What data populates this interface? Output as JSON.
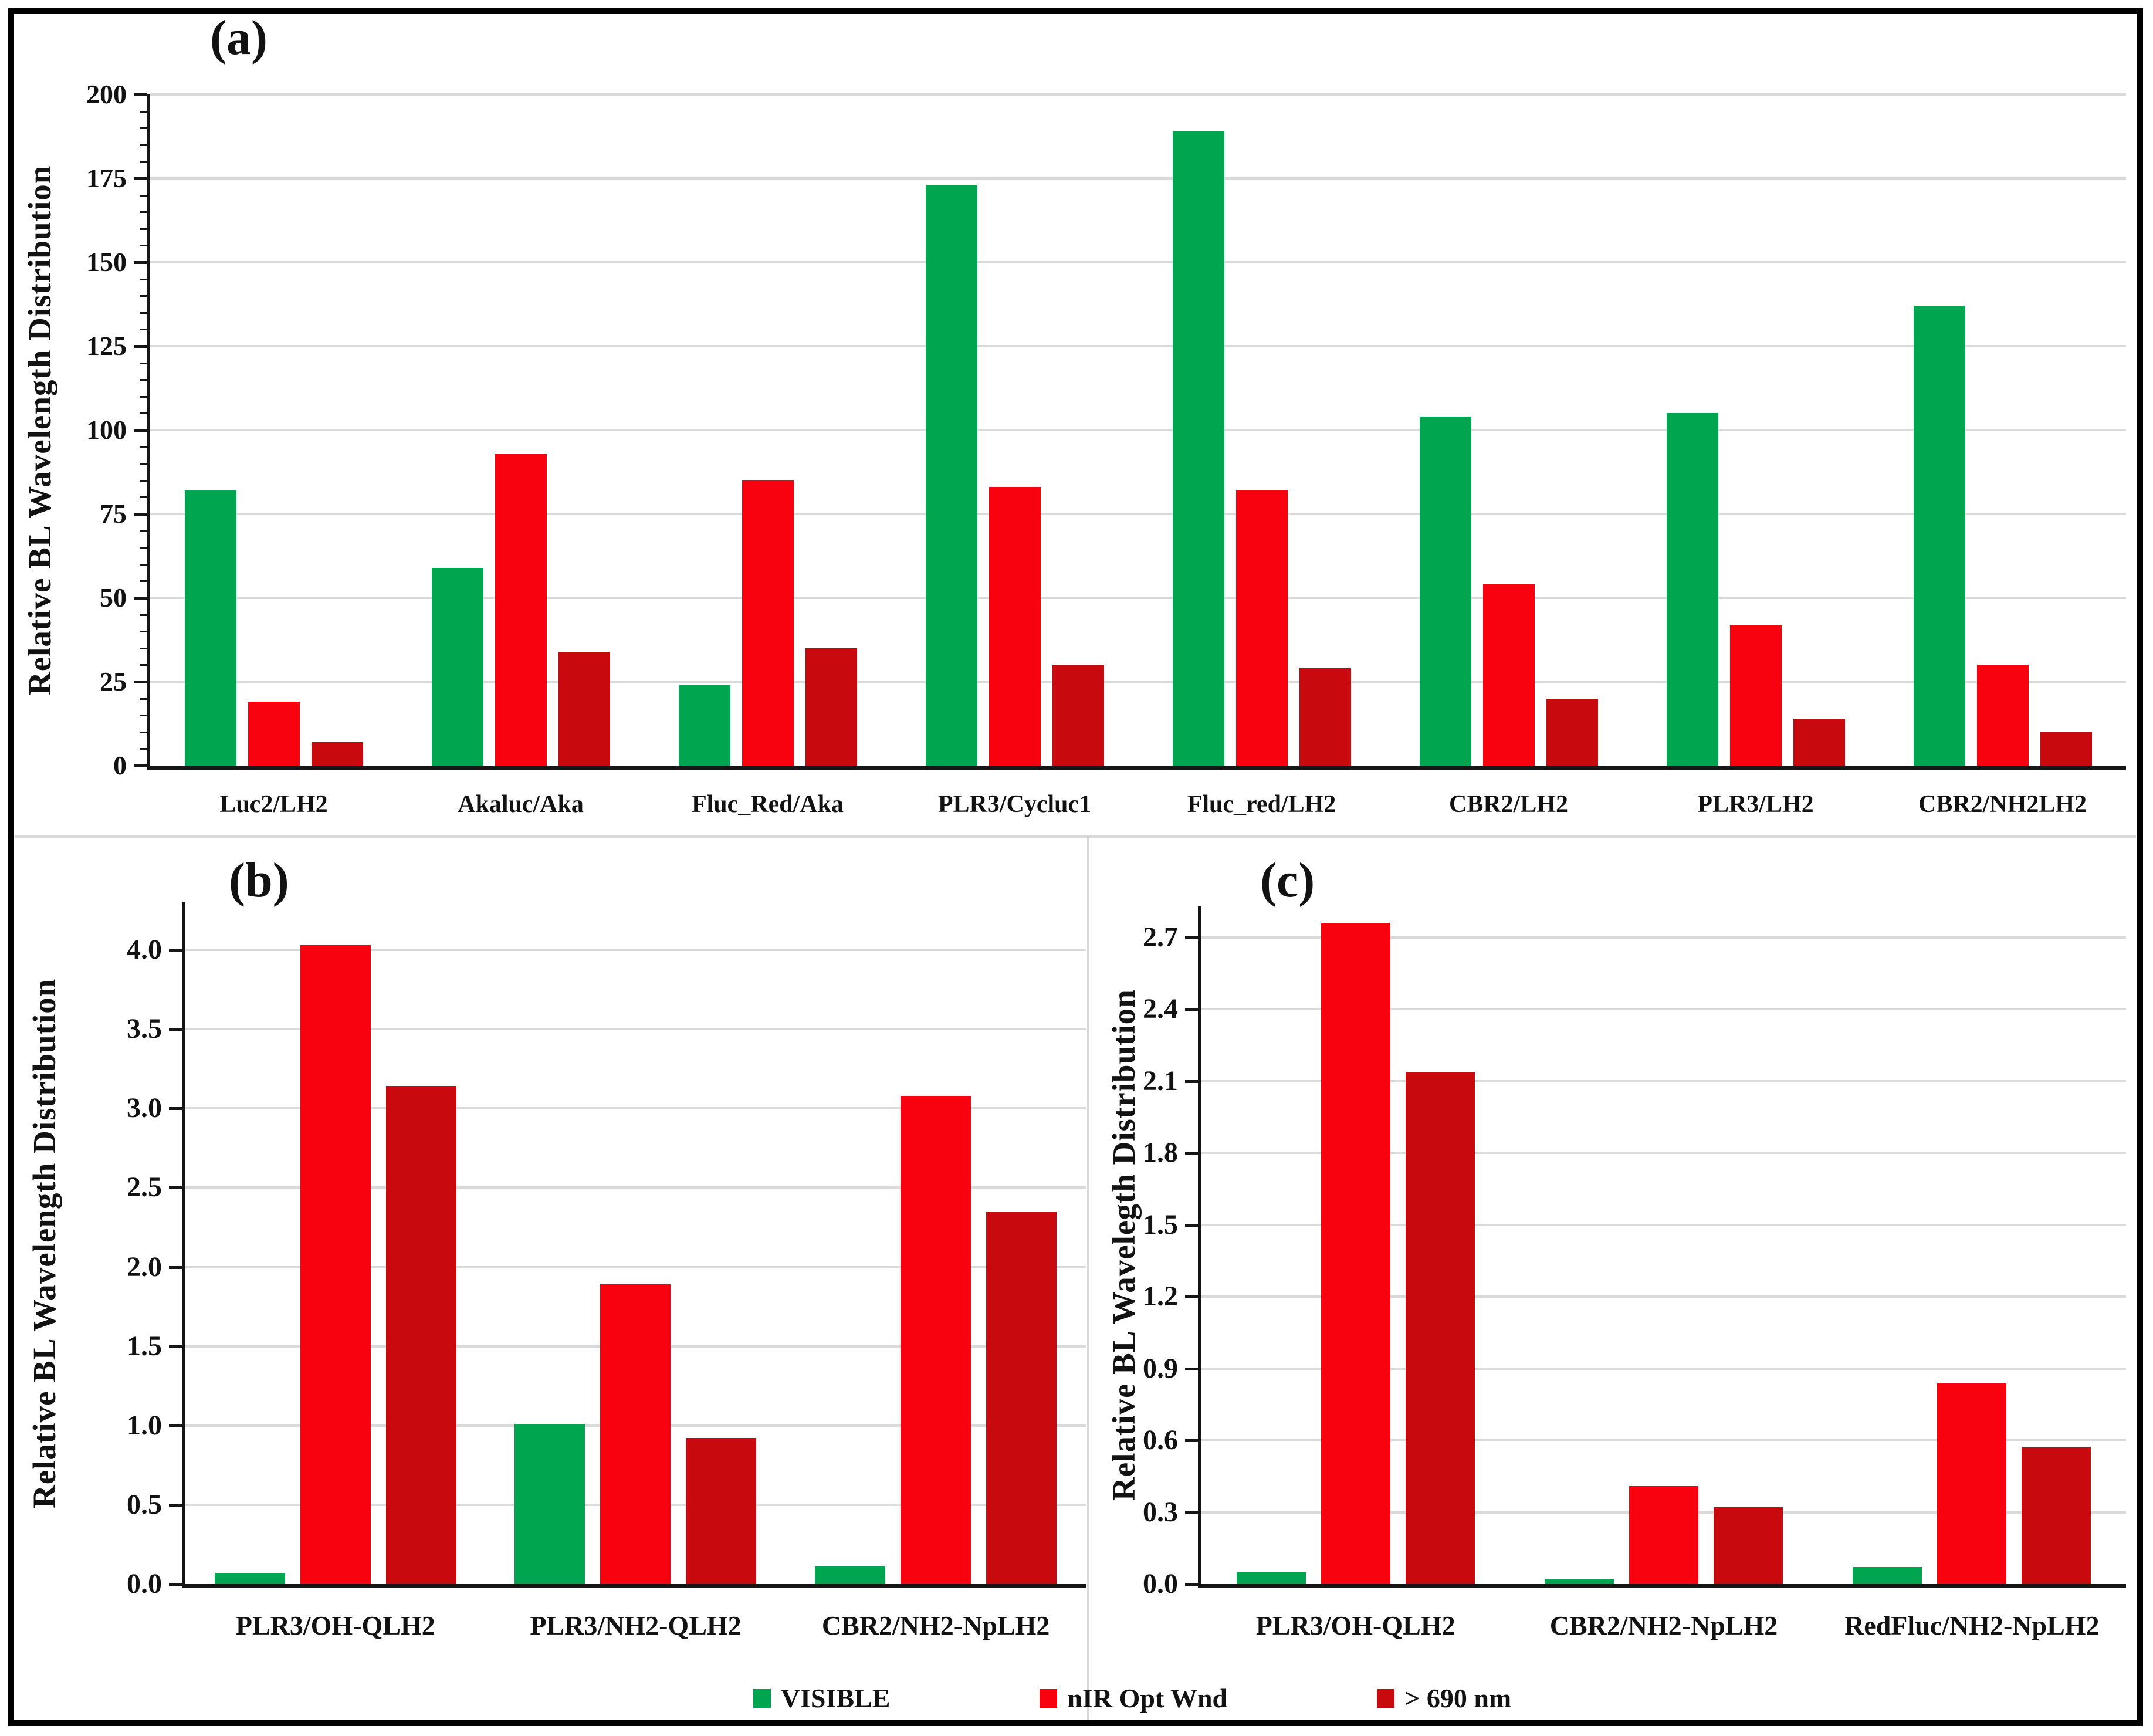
{
  "figure": {
    "background": "#FFFFFF",
    "border_color": "#000000"
  },
  "colors": {
    "visible": "#00A64F",
    "nir": "#F90210",
    "gt690": "#C8090E",
    "gridline": "#DADADA",
    "axis": "#161616",
    "divider": "#D9D9D9",
    "text": "#121212"
  },
  "legend": {
    "items": [
      {
        "label": "VISIBLE",
        "color": "visible"
      },
      {
        "label": "nIR Opt Wnd",
        "color": "nir"
      },
      {
        "label": "> 690 nm",
        "color": "gt690"
      }
    ]
  },
  "chart_data": [
    {
      "id": "a",
      "type": "bar",
      "tag": "(a)",
      "ylabel": "Relative BL Wavelength Distribution",
      "categories": [
        "Luc2/LH2",
        "Akaluc/Aka",
        "Fluc_Red/Aka",
        "PLR3/Cycluc1",
        "Fluc_red/LH2",
        "CBR2/LH2",
        "PLR3/LH2",
        "CBR2/NH2LH2"
      ],
      "series": [
        {
          "name": "VISIBLE",
          "values": [
            82,
            59,
            24,
            173,
            189,
            104,
            105,
            137
          ]
        },
        {
          "name": "nIR Opt Wnd",
          "values": [
            19,
            93,
            85,
            83,
            82,
            54,
            42,
            30
          ]
        },
        {
          "name": "> 690 nm",
          "values": [
            7,
            34,
            35,
            30,
            29,
            20,
            14,
            10
          ]
        }
      ],
      "yticks": [
        "0",
        "25",
        "50",
        "75",
        "100",
        "125",
        "150",
        "175",
        "200"
      ],
      "ylim": [
        0,
        200
      ],
      "ymax_plot": 200,
      "major_tick_step": 25,
      "minor_tick_step": 5,
      "grid": true,
      "legend_position": "bottom"
    },
    {
      "id": "b",
      "type": "bar",
      "tag": "(b)",
      "ylabel": "Relative BL Wavelength Distribution",
      "categories": [
        "PLR3/OH-QLH2",
        "PLR3/NH2-QLH2",
        "CBR2/NH2-NpLH2"
      ],
      "series": [
        {
          "name": "VISIBLE",
          "values": [
            0.07,
            1.01,
            0.11
          ]
        },
        {
          "name": "nIR Opt Wnd",
          "values": [
            4.03,
            1.89,
            3.08
          ]
        },
        {
          "name": "> 690 nm",
          "values": [
            3.14,
            0.92,
            2.35
          ]
        }
      ],
      "yticks": [
        "0.0",
        "0.5",
        "1.0",
        "1.5",
        "2.0",
        "2.5",
        "3.0",
        "3.5",
        "4.0"
      ],
      "ylim": [
        0,
        4.3
      ],
      "ymax_plot": 4.3,
      "grid": true,
      "legend_position": "bottom"
    },
    {
      "id": "c",
      "type": "bar",
      "tag": "(c)",
      "ylabel": "Relative BL Wavelegth Distribution",
      "categories": [
        "PLR3/OH-QLH2",
        "CBR2/NH2-NpLH2",
        "RedFluc/NH2-NpLH2"
      ],
      "series": [
        {
          "name": "VISIBLE",
          "values": [
            0.05,
            0.02,
            0.07
          ]
        },
        {
          "name": "nIR Opt Wnd",
          "values": [
            2.76,
            0.41,
            0.84
          ]
        },
        {
          "name": "> 690 nm",
          "values": [
            2.14,
            0.32,
            0.57
          ]
        }
      ],
      "yticks": [
        "0.0",
        "0.3",
        "0.6",
        "0.9",
        "1.2",
        "1.5",
        "1.8",
        "2.1",
        "2.4",
        "2.7"
      ],
      "ylim": [
        0,
        2.83
      ],
      "ymax_plot": 2.83,
      "grid": true,
      "legend_position": "bottom"
    }
  ]
}
